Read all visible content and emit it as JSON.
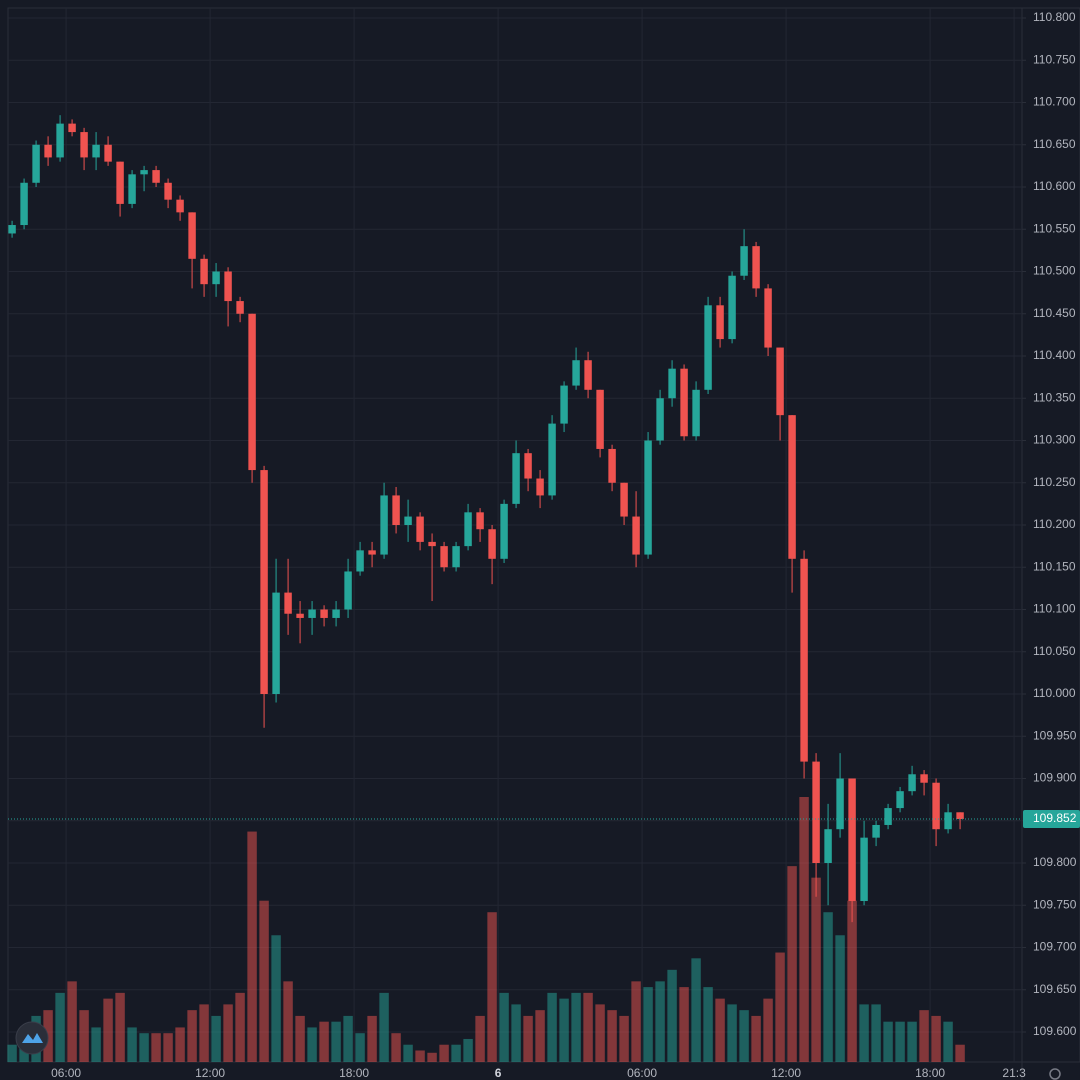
{
  "chart_data": {
    "type": "candlestick",
    "x": [
      3.75,
      4.25,
      4.75,
      5.25,
      5.75,
      6.25,
      6.75,
      7.25,
      7.75,
      8.25,
      8.75,
      9.25,
      9.75,
      10.25,
      10.75,
      11.25,
      11.75,
      12.25,
      12.75,
      13.25,
      13.75,
      14.25,
      14.75,
      15.25,
      15.75,
      16.25,
      16.75,
      17.25,
      17.75,
      18.25,
      18.75,
      19.25,
      19.75,
      20.25,
      20.75,
      21.25,
      21.75,
      22.25,
      22.75,
      23.25,
      23.75,
      24.25,
      24.75,
      25.25,
      25.75,
      26.25,
      26.75,
      27.25,
      27.75,
      28.25,
      28.75,
      29.25,
      29.75,
      30.25,
      30.75,
      31.25,
      31.75,
      32.25,
      32.75,
      33.25,
      33.75,
      34.25,
      34.75,
      35.25,
      35.75,
      36.25,
      36.75,
      37.25,
      37.75,
      38.25,
      38.75,
      39.25,
      39.75,
      40.25,
      40.75,
      41.25,
      41.75,
      42.25,
      42.75,
      43.25
    ],
    "open": [
      110.545,
      110.555,
      110.605,
      110.65,
      110.635,
      110.675,
      110.665,
      110.635,
      110.65,
      110.63,
      110.58,
      110.615,
      110.62,
      110.605,
      110.585,
      110.57,
      110.515,
      110.485,
      110.5,
      110.465,
      110.45,
      110.265,
      110.0,
      110.12,
      110.095,
      110.09,
      110.1,
      110.09,
      110.1,
      110.145,
      110.17,
      110.165,
      110.235,
      110.2,
      110.21,
      110.18,
      110.175,
      110.15,
      110.175,
      110.215,
      110.195,
      110.16,
      110.225,
      110.285,
      110.255,
      110.235,
      110.32,
      110.365,
      110.395,
      110.36,
      110.29,
      110.25,
      110.21,
      110.165,
      110.3,
      110.35,
      110.385,
      110.305,
      110.36,
      110.46,
      110.42,
      110.495,
      110.53,
      110.48,
      110.41,
      110.33,
      110.16,
      109.92,
      109.8,
      109.84,
      109.9,
      109.755,
      109.83,
      109.845,
      109.865,
      109.885,
      109.905,
      109.895,
      109.84,
      109.86
    ],
    "high": [
      110.56,
      110.61,
      110.655,
      110.66,
      110.685,
      110.68,
      110.67,
      110.665,
      110.66,
      110.63,
      110.62,
      110.625,
      110.625,
      110.61,
      110.59,
      110.57,
      110.52,
      110.51,
      110.505,
      110.47,
      110.45,
      110.27,
      110.16,
      110.16,
      110.11,
      110.11,
      110.105,
      110.11,
      110.16,
      110.18,
      110.18,
      110.25,
      110.245,
      110.23,
      110.215,
      110.19,
      110.18,
      110.18,
      110.225,
      110.22,
      110.2,
      110.23,
      110.3,
      110.29,
      110.265,
      110.33,
      110.37,
      110.41,
      110.405,
      110.36,
      110.295,
      110.25,
      110.24,
      110.31,
      110.36,
      110.395,
      110.39,
      110.37,
      110.47,
      110.47,
      110.5,
      110.55,
      110.535,
      110.485,
      110.41,
      110.33,
      110.17,
      109.93,
      109.87,
      109.93,
      109.9,
      109.85,
      109.85,
      109.87,
      109.89,
      109.915,
      109.91,
      109.9,
      109.87,
      109.86
    ],
    "low": [
      110.54,
      110.55,
      110.6,
      110.625,
      110.63,
      110.66,
      110.62,
      110.62,
      110.625,
      110.565,
      110.575,
      110.595,
      110.6,
      110.575,
      110.56,
      110.48,
      110.47,
      110.47,
      110.435,
      110.44,
      110.25,
      109.96,
      109.99,
      110.07,
      110.06,
      110.07,
      110.08,
      110.08,
      110.09,
      110.14,
      110.15,
      110.16,
      110.19,
      110.18,
      110.17,
      110.11,
      110.145,
      110.145,
      110.17,
      110.18,
      110.13,
      110.155,
      110.22,
      110.24,
      110.22,
      110.23,
      110.31,
      110.36,
      110.35,
      110.28,
      110.24,
      110.2,
      110.15,
      110.16,
      110.295,
      110.34,
      110.3,
      110.3,
      110.355,
      110.41,
      110.415,
      110.49,
      110.47,
      110.4,
      110.3,
      110.12,
      109.9,
      109.76,
      109.75,
      109.83,
      109.73,
      109.75,
      109.82,
      109.84,
      109.86,
      109.88,
      109.88,
      109.82,
      109.835,
      109.84
    ],
    "close": [
      110.555,
      110.605,
      110.65,
      110.635,
      110.675,
      110.665,
      110.635,
      110.65,
      110.63,
      110.58,
      110.615,
      110.62,
      110.605,
      110.585,
      110.57,
      110.515,
      110.485,
      110.5,
      110.465,
      110.45,
      110.265,
      110.0,
      110.12,
      110.095,
      110.09,
      110.1,
      110.09,
      110.1,
      110.145,
      110.17,
      110.165,
      110.235,
      110.2,
      110.21,
      110.18,
      110.175,
      110.15,
      110.175,
      110.215,
      110.195,
      110.16,
      110.225,
      110.285,
      110.255,
      110.235,
      110.32,
      110.365,
      110.395,
      110.36,
      110.29,
      110.25,
      110.21,
      110.165,
      110.3,
      110.35,
      110.385,
      110.305,
      110.36,
      110.46,
      110.42,
      110.495,
      110.53,
      110.48,
      110.41,
      110.33,
      110.16,
      109.92,
      109.8,
      109.84,
      109.9,
      109.755,
      109.83,
      109.845,
      109.865,
      109.885,
      109.905,
      109.895,
      109.84,
      109.86,
      109.852
    ],
    "volume": [
      15,
      20,
      40,
      45,
      60,
      70,
      45,
      30,
      55,
      60,
      30,
      25,
      25,
      25,
      30,
      45,
      50,
      40,
      50,
      60,
      200,
      140,
      110,
      70,
      40,
      30,
      35,
      35,
      40,
      25,
      40,
      60,
      25,
      15,
      10,
      8,
      15,
      15,
      20,
      40,
      130,
      60,
      50,
      40,
      45,
      60,
      55,
      60,
      60,
      50,
      45,
      40,
      70,
      65,
      70,
      80,
      65,
      90,
      65,
      55,
      50,
      45,
      40,
      55,
      95,
      170,
      230,
      160,
      130,
      110,
      140,
      50,
      50,
      35,
      35,
      35,
      45,
      40,
      35,
      15
    ],
    "up_color": "#26a69a",
    "down_color": "#ef5350",
    "xlim": [
      3.58,
      45.83
    ],
    "ylim": [
      109.6,
      110.8
    ],
    "xticks": [
      {
        "value": 6,
        "label": "06:00"
      },
      {
        "value": 12,
        "label": "12:00"
      },
      {
        "value": 18,
        "label": "18:00"
      },
      {
        "value": 24,
        "label": "6"
      },
      {
        "value": 30,
        "label": "06:00"
      },
      {
        "value": 36,
        "label": "12:00"
      },
      {
        "value": 42,
        "label": "18:00"
      },
      {
        "value": 45.5,
        "label": "21:3"
      }
    ],
    "yticks": [
      {
        "value": 109.6,
        "label": "109.600"
      },
      {
        "value": 109.65,
        "label": "109.650"
      },
      {
        "value": 109.7,
        "label": "109.700"
      },
      {
        "value": 109.75,
        "label": "109.750"
      },
      {
        "value": 109.8,
        "label": "109.800"
      },
      {
        "value": 109.85,
        "label": "109.850"
      },
      {
        "value": 109.9,
        "label": "109.900"
      },
      {
        "value": 109.95,
        "label": "109.950"
      },
      {
        "value": 110.0,
        "label": "110.000"
      },
      {
        "value": 110.05,
        "label": "110.050"
      },
      {
        "value": 110.1,
        "label": "110.100"
      },
      {
        "value": 110.15,
        "label": "110.150"
      },
      {
        "value": 110.2,
        "label": "110.200"
      },
      {
        "value": 110.25,
        "label": "110.250"
      },
      {
        "value": 110.3,
        "label": "110.300"
      },
      {
        "value": 110.35,
        "label": "110.350"
      },
      {
        "value": 110.4,
        "label": "110.400"
      },
      {
        "value": 110.45,
        "label": "110.450"
      },
      {
        "value": 110.5,
        "label": "110.500"
      },
      {
        "value": 110.55,
        "label": "110.550"
      },
      {
        "value": 110.6,
        "label": "110.600"
      },
      {
        "value": 110.65,
        "label": "110.650"
      },
      {
        "value": 110.7,
        "label": "110.700"
      },
      {
        "value": 110.75,
        "label": "110.750"
      },
      {
        "value": 110.8,
        "label": "110.800"
      }
    ],
    "last_price": {
      "value": 109.852,
      "label": "109.852"
    },
    "grid": true
  }
}
